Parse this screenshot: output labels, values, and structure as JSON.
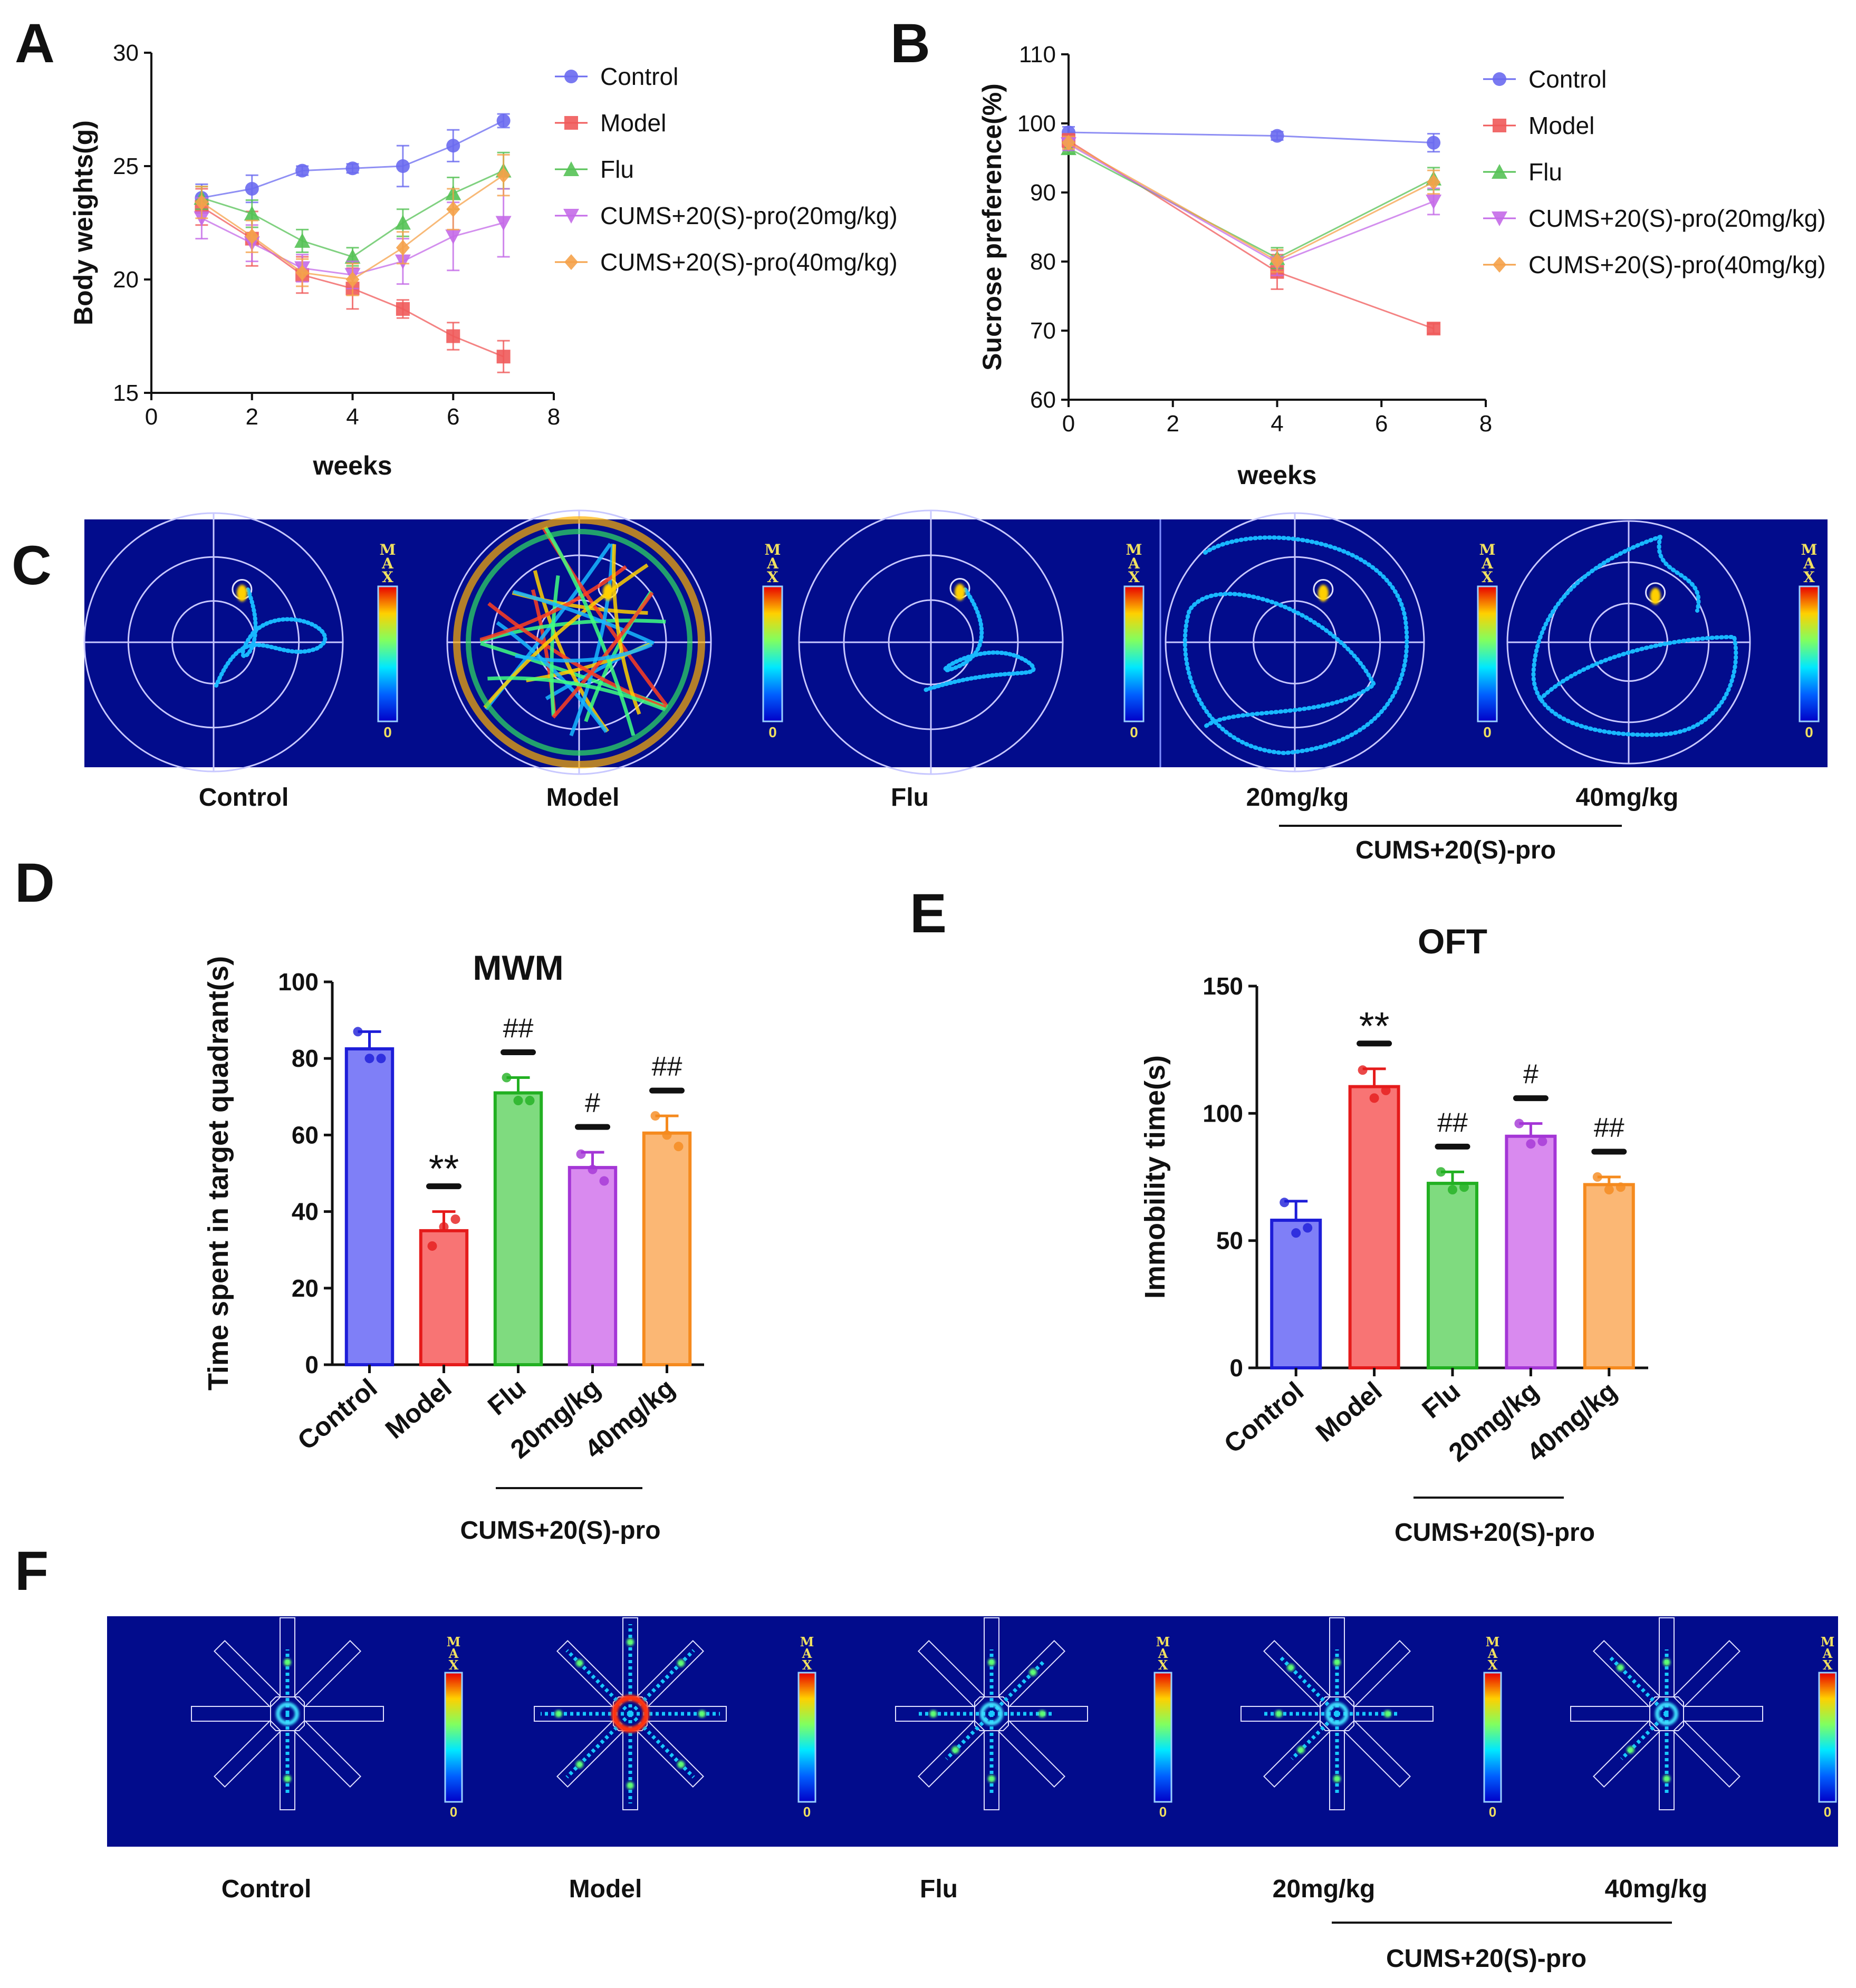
{
  "panel_letters": [
    "A",
    "B",
    "C",
    "D",
    "E",
    "F"
  ],
  "colors": {
    "control": "#6A6AF0",
    "model": "#F05A5A",
    "flu": "#55C255",
    "pro20": "#C46AE8",
    "pro40": "#F5A24A",
    "heatmap_bg": "#020C8C"
  },
  "chart_data": [
    {
      "id": "A",
      "type": "line",
      "title": "",
      "xlabel": "weeks",
      "ylabel": "Body weights(g)",
      "xlim": [
        0,
        8
      ],
      "ylim": [
        15,
        30
      ],
      "xticks": [
        "0",
        "2",
        "4",
        "6",
        "8"
      ],
      "yticks": [
        "15",
        "20",
        "25",
        "30"
      ],
      "legend_position": "right",
      "x": [
        1,
        2,
        3,
        4,
        5,
        6,
        7
      ],
      "series": [
        {
          "name": "Control",
          "marker": "circle",
          "values": [
            23.6,
            24.0,
            24.8,
            24.9,
            25.0,
            25.9,
            27.0
          ],
          "errors": [
            0.6,
            0.6,
            0.2,
            0.2,
            0.9,
            0.7,
            0.3
          ]
        },
        {
          "name": "Model",
          "marker": "square",
          "values": [
            23.2,
            21.8,
            20.2,
            19.6,
            18.7,
            17.5,
            16.6
          ],
          "errors": [
            0.8,
            1.2,
            0.8,
            0.9,
            0.4,
            0.6,
            0.7
          ]
        },
        {
          "name": "Flu",
          "marker": "triangle-up",
          "values": [
            23.6,
            22.9,
            21.7,
            21.0,
            22.5,
            23.8,
            24.8
          ],
          "errors": [
            0.5,
            0.6,
            0.5,
            0.4,
            0.6,
            0.7,
            0.8
          ]
        },
        {
          "name": "CUMS+20(S)-pro(20mg/kg)",
          "marker": "triangle-down",
          "values": [
            22.7,
            21.6,
            20.5,
            20.2,
            20.8,
            21.9,
            22.5
          ],
          "errors": [
            0.9,
            0.8,
            0.6,
            0.6,
            1.0,
            1.5,
            1.5
          ]
        },
        {
          "name": "CUMS+20(S)-pro(40mg/kg)",
          "marker": "diamond",
          "values": [
            23.4,
            21.9,
            20.3,
            20.0,
            21.4,
            23.1,
            24.6
          ],
          "errors": [
            0.7,
            0.7,
            0.6,
            0.7,
            0.7,
            0.9,
            0.9
          ]
        }
      ]
    },
    {
      "id": "B",
      "type": "line",
      "title": "",
      "xlabel": "weeks",
      "ylabel": "Sucrose preference(%)",
      "xlim": [
        0,
        8
      ],
      "ylim": [
        60,
        110
      ],
      "xticks": [
        "0",
        "2",
        "4",
        "6",
        "8"
      ],
      "yticks": [
        "60",
        "70",
        "80",
        "90",
        "100",
        "110"
      ],
      "legend_position": "right",
      "x": [
        0,
        4,
        7
      ],
      "series": [
        {
          "name": "Control",
          "marker": "circle",
          "values": [
            98.7,
            98.2,
            97.2
          ],
          "errors": [
            0.8,
            0.6,
            1.3
          ]
        },
        {
          "name": "Model",
          "marker": "square",
          "values": [
            97.5,
            78.5,
            70.3
          ],
          "errors": [
            1.0,
            2.5,
            0.7
          ]
        },
        {
          "name": "Flu",
          "marker": "triangle-up",
          "values": [
            96.4,
            80.5,
            92.0
          ],
          "errors": [
            0.8,
            1.5,
            1.6
          ]
        },
        {
          "name": "CUMS+20(S)-pro(20mg/kg)",
          "marker": "triangle-down",
          "values": [
            97.0,
            79.8,
            88.7
          ],
          "errors": [
            0.9,
            1.8,
            1.9
          ]
        },
        {
          "name": "CUMS+20(S)-pro(40mg/kg)",
          "marker": "diamond",
          "values": [
            97.2,
            80.1,
            91.5
          ],
          "errors": [
            0.9,
            1.6,
            1.7
          ]
        }
      ]
    },
    {
      "id": "D",
      "type": "bar",
      "title": "MWM",
      "xlabel": "",
      "ylabel": "Time spent in target quadrant(s)",
      "ylim": [
        0,
        100
      ],
      "yticks": [
        "0",
        "20",
        "40",
        "60",
        "80",
        "100"
      ],
      "categories": [
        "Control",
        "Model",
        "Flu",
        "20mg/kg",
        "40mg/kg"
      ],
      "group_label": "CUMS+20(S)-pro",
      "values": [
        82.5,
        35.0,
        71.0,
        51.5,
        60.5
      ],
      "errors": [
        4.5,
        5.0,
        4.0,
        4.0,
        4.5
      ],
      "points": [
        [
          87,
          80,
          80
        ],
        [
          31,
          36,
          38
        ],
        [
          75,
          69,
          69
        ],
        [
          55,
          51,
          48
        ],
        [
          65,
          60,
          57
        ]
      ],
      "significance": [
        "",
        "**",
        "##",
        "#",
        "##"
      ]
    },
    {
      "id": "E",
      "type": "bar",
      "title": "OFT",
      "xlabel": "",
      "ylabel": "Immobility time(s)",
      "ylim": [
        0,
        150
      ],
      "yticks": [
        "0",
        "50",
        "100",
        "150"
      ],
      "categories": [
        "Control",
        "Model",
        "Flu",
        "20mg/kg",
        "40mg/kg"
      ],
      "group_label": "CUMS+20(S)-pro",
      "values": [
        58.0,
        110.5,
        72.5,
        91.0,
        72.0
      ],
      "errors": [
        7.5,
        7.0,
        4.5,
        5.0,
        3.0
      ],
      "points": [
        [
          65,
          53,
          55
        ],
        [
          117,
          106,
          109
        ],
        [
          77,
          70,
          71
        ],
        [
          96,
          88,
          89
        ],
        [
          75,
          70,
          71
        ]
      ],
      "significance": [
        "",
        "**",
        "##",
        "#",
        "##"
      ]
    }
  ],
  "heatmap_C": {
    "scale_max": "MAX",
    "scale_min": "0",
    "labels": [
      "Control",
      "Model",
      "Flu",
      "20mg/kg",
      "40mg/kg"
    ],
    "group_label": "CUMS+20(S)-pro"
  },
  "heatmap_F": {
    "scale_max": "MAX",
    "scale_min": "0",
    "labels": [
      "Control",
      "Model",
      "Flu",
      "20mg/kg",
      "40mg/kg"
    ],
    "group_label": "CUMS+20(S)-pro"
  }
}
